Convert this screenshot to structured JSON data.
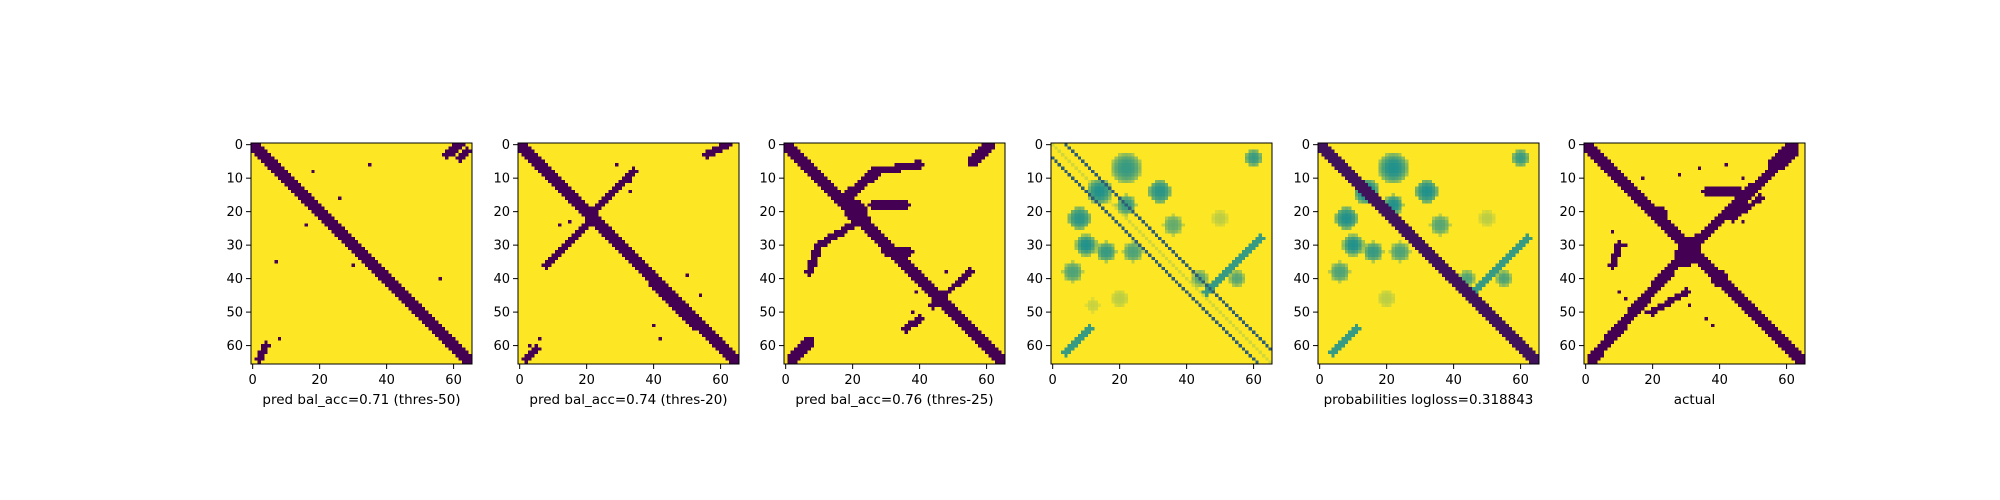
{
  "colors": {
    "low": "#440154",
    "mid": "#21918c",
    "high": "#fde725",
    "axis": "#000000"
  },
  "chart_data": [
    {
      "type": "heatmap",
      "title": "",
      "xlabel": "pred bal_acc=0.71 (thres-50)",
      "ylabel": "",
      "size": 66,
      "xticks": [
        0,
        20,
        40,
        60
      ],
      "yticks": [
        0,
        10,
        20,
        30,
        40,
        50,
        60
      ],
      "xlim": [
        -0.5,
        65.5
      ],
      "ylim": [
        65.5,
        -0.5
      ],
      "value_range": [
        0,
        1
      ],
      "colormap": "viridis",
      "bands": [
        {
          "offset": 0,
          "width": 2.0,
          "value": 0
        }
      ],
      "segments": [
        [
          2,
          64,
          4,
          60,
          1.2
        ],
        [
          58,
          3,
          62,
          0,
          1.2
        ],
        [
          62,
          4,
          64,
          2,
          1
        ]
      ],
      "blobs": [],
      "specks": [
        [
          18,
          8
        ],
        [
          35,
          6
        ],
        [
          26,
          16
        ],
        [
          16,
          24
        ],
        [
          30,
          36
        ],
        [
          8,
          58
        ],
        [
          56,
          40
        ],
        [
          7,
          35
        ]
      ]
    },
    {
      "type": "heatmap",
      "title": "",
      "xlabel": "pred bal_acc=0.74 (thres-20)",
      "ylabel": "",
      "size": 66,
      "xticks": [
        0,
        20,
        40,
        60
      ],
      "yticks": [
        0,
        10,
        20,
        30,
        40,
        50,
        60
      ],
      "xlim": [
        -0.5,
        65.5
      ],
      "ylim": [
        65.5,
        -0.5
      ],
      "value_range": [
        0,
        1
      ],
      "colormap": "viridis",
      "bands": [
        {
          "offset": 0,
          "width": 2.2,
          "value": 0
        }
      ],
      "segments": [
        [
          22,
          20,
          34,
          8,
          1.2
        ],
        [
          22,
          22,
          8,
          36,
          1.3
        ],
        [
          40,
          42,
          52,
          54,
          1.2
        ],
        [
          56,
          3,
          62,
          0,
          1.3
        ],
        [
          2,
          64,
          5,
          61,
          1.3
        ]
      ],
      "blobs": [],
      "specks": [
        [
          29,
          6
        ],
        [
          33,
          11
        ],
        [
          33,
          14
        ],
        [
          12,
          24
        ],
        [
          15,
          23
        ],
        [
          50,
          39
        ],
        [
          54,
          45
        ],
        [
          40,
          54
        ],
        [
          42,
          58
        ],
        [
          6,
          58
        ],
        [
          3,
          60
        ]
      ]
    },
    {
      "type": "heatmap",
      "title": "",
      "xlabel": "pred bal_acc=0.76 (thres-25)",
      "ylabel": "",
      "size": 66,
      "xticks": [
        0,
        20,
        40,
        60
      ],
      "yticks": [
        0,
        10,
        20,
        30,
        40,
        50,
        60
      ],
      "xlim": [
        -0.5,
        65.5
      ],
      "ylim": [
        65.5,
        -0.5
      ],
      "value_range": [
        0,
        1
      ],
      "colormap": "viridis",
      "bands": [
        {
          "offset": 0,
          "width": 2.4,
          "value": 0
        }
      ],
      "segments": [
        [
          18,
          16,
          27,
          8,
          1.6
        ],
        [
          27,
          8,
          40,
          6,
          1.2
        ],
        [
          20,
          24,
          10,
          30,
          1.2
        ],
        [
          10,
          30,
          7,
          38,
          1.2
        ],
        [
          24,
          22,
          30,
          32,
          1.2
        ],
        [
          30,
          32,
          37,
          32,
          1.0
        ],
        [
          26,
          18,
          36,
          18,
          1.2
        ],
        [
          44,
          48,
          55,
          38,
          1.0
        ],
        [
          40,
          52,
          36,
          55,
          1.0
        ],
        [
          56,
          5,
          61,
          0,
          1.6
        ],
        [
          2,
          64,
          7,
          59,
          1.6
        ]
      ],
      "blobs": [
        [
          21,
          20,
          3.4,
          0
        ]
      ],
      "specks": [
        [
          39,
          44
        ],
        [
          48,
          38
        ],
        [
          44,
          46
        ],
        [
          38,
          50
        ]
      ]
    },
    {
      "type": "heatmap",
      "title": "",
      "xlabel": "",
      "ylabel": "",
      "size": 66,
      "xticks": [
        0,
        20,
        40,
        60
      ],
      "yticks": [
        0,
        10,
        20,
        30,
        40,
        50,
        60
      ],
      "xlim": [
        -0.5,
        65.5
      ],
      "ylim": [
        65.5,
        -0.5
      ],
      "value_range": [
        0,
        1
      ],
      "colormap": "viridis",
      "bands": [
        {
          "offset": 0,
          "width": 0.5,
          "value": 0.9
        },
        {
          "offset": 4,
          "width": 0.7,
          "value": 0.32
        },
        {
          "offset": -4,
          "width": 0.7,
          "value": 0.32
        }
      ],
      "segments": [
        [
          46,
          44,
          62,
          28,
          1.0,
          0.55
        ],
        [
          4,
          62,
          11,
          55,
          1.0,
          0.55
        ]
      ],
      "blobs": [
        [
          22,
          7,
          4.5,
          0.55
        ],
        [
          14,
          14,
          3.8,
          0.5
        ],
        [
          8,
          22,
          3.5,
          0.52
        ],
        [
          10,
          30,
          3.2,
          0.5
        ],
        [
          22,
          18,
          3.0,
          0.55
        ],
        [
          32,
          14,
          3.6,
          0.52
        ],
        [
          16,
          32,
          3.0,
          0.55
        ],
        [
          24,
          32,
          3.0,
          0.6
        ],
        [
          36,
          24,
          3.0,
          0.65
        ],
        [
          6,
          38,
          3.0,
          0.6
        ],
        [
          44,
          40,
          2.4,
          0.62
        ],
        [
          55,
          40,
          2.4,
          0.62
        ],
        [
          60,
          4,
          2.6,
          0.55
        ],
        [
          20,
          46,
          2.6,
          0.85
        ],
        [
          50,
          22,
          2.4,
          0.85
        ],
        [
          12,
          48,
          2.2,
          0.88
        ]
      ],
      "specks": []
    },
    {
      "type": "heatmap",
      "title": "",
      "xlabel": "probabilities logloss=0.318843",
      "ylabel": "",
      "size": 66,
      "xticks": [
        0,
        20,
        40,
        60
      ],
      "yticks": [
        0,
        10,
        20,
        30,
        40,
        50,
        60
      ],
      "xlim": [
        -0.5,
        65.5
      ],
      "ylim": [
        65.5,
        -0.5
      ],
      "value_range": [
        0,
        1
      ],
      "colormap": "viridis",
      "bands": [
        {
          "offset": 0,
          "width": 2.4,
          "value": 0.06
        }
      ],
      "segments": [
        [
          46,
          44,
          62,
          28,
          1.0,
          0.55
        ],
        [
          4,
          62,
          11,
          55,
          1.0,
          0.55
        ]
      ],
      "blobs": [
        [
          22,
          7,
          4.5,
          0.5
        ],
        [
          14,
          14,
          3.8,
          0.45
        ],
        [
          8,
          22,
          3.5,
          0.5
        ],
        [
          10,
          30,
          3.2,
          0.5
        ],
        [
          22,
          18,
          3.0,
          0.5
        ],
        [
          32,
          14,
          3.6,
          0.5
        ],
        [
          16,
          32,
          3.0,
          0.55
        ],
        [
          24,
          32,
          3.0,
          0.6
        ],
        [
          36,
          24,
          3.0,
          0.62
        ],
        [
          6,
          38,
          3.0,
          0.6
        ],
        [
          44,
          40,
          2.4,
          0.6
        ],
        [
          55,
          40,
          2.4,
          0.6
        ],
        [
          60,
          4,
          2.6,
          0.55
        ],
        [
          20,
          46,
          2.6,
          0.85
        ],
        [
          50,
          22,
          2.4,
          0.85
        ]
      ],
      "specks": []
    },
    {
      "type": "heatmap",
      "title": "",
      "xlabel": "actual",
      "ylabel": "",
      "size": 66,
      "xticks": [
        0,
        20,
        40,
        60
      ],
      "yticks": [
        0,
        10,
        20,
        30,
        40,
        50,
        60
      ],
      "xlim": [
        -0.5,
        65.5
      ],
      "ylim": [
        65.5,
        -0.5
      ],
      "value_range": [
        0,
        1
      ],
      "colormap": "viridis",
      "bands": [
        {
          "offset": 0,
          "width": 2.4,
          "value": 0
        }
      ],
      "segments": [
        [
          2,
          64,
          30,
          32,
          1.6
        ],
        [
          30,
          32,
          62,
          2,
          1.6
        ],
        [
          56,
          6,
          62,
          0,
          1.6
        ],
        [
          10,
          30,
          8,
          36,
          1.0
        ],
        [
          36,
          14,
          46,
          14,
          1.0
        ],
        [
          20,
          50,
          30,
          44,
          1.0
        ],
        [
          44,
          22,
          52,
          16,
          1.0
        ]
      ],
      "blobs": [
        [
          31,
          31,
          3.6,
          0
        ],
        [
          22,
          21,
          2.6,
          0
        ],
        [
          40,
          40,
          2.4,
          0
        ],
        [
          30,
          33,
          3.2,
          0
        ]
      ],
      "specks": [
        [
          5,
          6
        ],
        [
          17,
          10
        ],
        [
          28,
          9
        ],
        [
          34,
          7
        ],
        [
          42,
          6
        ],
        [
          47,
          10
        ],
        [
          46,
          14
        ],
        [
          8,
          26
        ],
        [
          9,
          30
        ],
        [
          12,
          30
        ],
        [
          24,
          40
        ],
        [
          31,
          48
        ],
        [
          38,
          54
        ],
        [
          14,
          48
        ],
        [
          18,
          50
        ],
        [
          47,
          23
        ],
        [
          26,
          38
        ],
        [
          36,
          52
        ],
        [
          10,
          44
        ],
        [
          12,
          46
        ]
      ]
    }
  ]
}
